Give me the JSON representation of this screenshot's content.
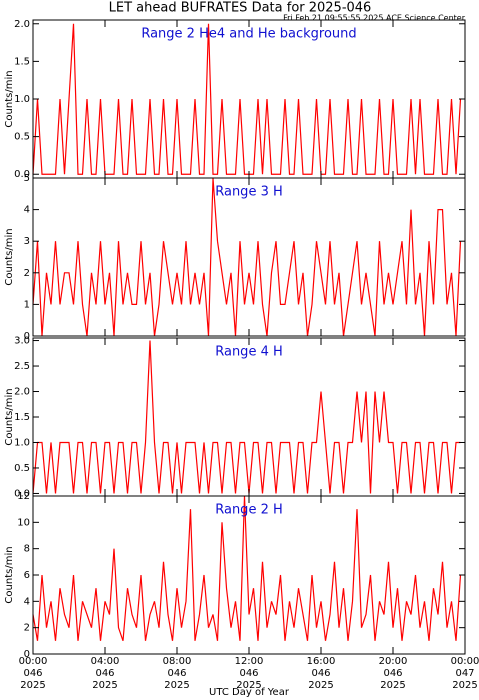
{
  "title": "LET ahead BUFRATES Data for 2025-046",
  "subtitle": "Fri Feb 21 09:55:55 2025 ACE Science Center",
  "xlabel": "UTC Day of Year",
  "chart_data": [
    {
      "type": "line",
      "annotation": "Range 2 He4 and He background",
      "ylabel": "Counts/min",
      "color": "#ff0000",
      "xlim": [
        0,
        24
      ],
      "ylim": [
        -0.05,
        2.05
      ],
      "yticks": [
        {
          "value": 0,
          "label": "0.0"
        },
        {
          "value": 0.5,
          "label": "0.5"
        },
        {
          "value": 1,
          "label": "1.0"
        },
        {
          "value": 1.5,
          "label": "1.5"
        },
        {
          "value": 2,
          "label": "2.0"
        }
      ],
      "x": [
        0,
        0.25,
        0.5,
        0.75,
        1,
        1.25,
        1.5,
        1.75,
        2,
        2.25,
        2.5,
        2.75,
        3,
        3.25,
        3.5,
        3.75,
        4,
        4.25,
        4.5,
        4.75,
        5,
        5.25,
        5.5,
        5.75,
        6,
        6.25,
        6.5,
        6.75,
        7,
        7.25,
        7.5,
        7.75,
        8,
        8.25,
        8.5,
        8.75,
        9,
        9.25,
        9.5,
        9.75,
        10,
        10.25,
        10.5,
        10.75,
        11,
        11.25,
        11.5,
        11.75,
        12,
        12.25,
        12.5,
        12.75,
        13,
        13.25,
        13.5,
        13.75,
        14,
        14.25,
        14.5,
        14.75,
        15,
        15.25,
        15.5,
        15.75,
        16,
        16.25,
        16.5,
        16.75,
        17,
        17.25,
        17.5,
        17.75,
        18,
        18.25,
        18.5,
        18.75,
        19,
        19.25,
        19.5,
        19.75,
        20,
        20.25,
        20.5,
        20.75,
        21,
        21.25,
        21.5,
        21.75,
        22,
        22.25,
        22.5,
        22.75,
        23,
        23.25,
        23.5,
        23.75
      ],
      "values": [
        0,
        1,
        0,
        0,
        0,
        0,
        1,
        0,
        1,
        2,
        0,
        0,
        1,
        0,
        0,
        1,
        0,
        0,
        0,
        1,
        0,
        0,
        1,
        0,
        0,
        0,
        1,
        0,
        0,
        1,
        0,
        0,
        1,
        0,
        0,
        0,
        1,
        0,
        0,
        2,
        0,
        0,
        1,
        0,
        0,
        0,
        1,
        0,
        0,
        0,
        1,
        0,
        1,
        0,
        0,
        0,
        1,
        0,
        0,
        1,
        0,
        0,
        0,
        1,
        0,
        0,
        1,
        0,
        0,
        0,
        1,
        0,
        0,
        1,
        0,
        0,
        0,
        1,
        0,
        0,
        1,
        0,
        0,
        0,
        1,
        0,
        1,
        0,
        0,
        0,
        1,
        0,
        0,
        1,
        0,
        1
      ]
    },
    {
      "type": "line",
      "annotation": "Range 3 H",
      "ylabel": "Counts/min",
      "color": "#ff0000",
      "xlim": [
        0,
        24
      ],
      "ylim": [
        0,
        5
      ],
      "yticks": [
        0,
        1,
        2,
        3,
        4,
        5
      ],
      "x": [
        0,
        0.25,
        0.5,
        0.75,
        1,
        1.25,
        1.5,
        1.75,
        2,
        2.25,
        2.5,
        2.75,
        3,
        3.25,
        3.5,
        3.75,
        4,
        4.25,
        4.5,
        4.75,
        5,
        5.25,
        5.5,
        5.75,
        6,
        6.25,
        6.5,
        6.75,
        7,
        7.25,
        7.5,
        7.75,
        8,
        8.25,
        8.5,
        8.75,
        9,
        9.25,
        9.5,
        9.75,
        10,
        10.25,
        10.5,
        10.75,
        11,
        11.25,
        11.5,
        11.75,
        12,
        12.25,
        12.5,
        12.75,
        13,
        13.25,
        13.5,
        13.75,
        14,
        14.25,
        14.5,
        14.75,
        15,
        15.25,
        15.5,
        15.75,
        16,
        16.25,
        16.5,
        16.75,
        17,
        17.25,
        17.5,
        17.75,
        18,
        18.25,
        18.5,
        18.75,
        19,
        19.25,
        19.5,
        19.75,
        20,
        20.25,
        20.5,
        20.75,
        21,
        21.25,
        21.5,
        21.75,
        22,
        22.25,
        22.5,
        22.75,
        23,
        23.25,
        23.5,
        23.75
      ],
      "values": [
        1,
        3,
        0,
        2,
        1,
        3,
        1,
        2,
        2,
        1,
        3,
        1,
        0,
        2,
        1,
        3,
        1,
        2,
        0,
        3,
        1,
        2,
        1,
        1,
        3,
        1,
        2,
        0,
        1,
        3,
        2,
        1,
        2,
        1,
        3,
        1,
        2,
        1,
        2,
        0,
        5,
        3,
        2,
        1,
        2,
        0,
        3,
        1,
        2,
        1,
        3,
        1,
        0,
        2,
        3,
        1,
        1,
        2,
        3,
        1,
        2,
        0,
        1,
        3,
        2,
        1,
        3,
        1,
        2,
        0,
        1,
        2,
        3,
        1,
        2,
        1,
        0,
        3,
        1,
        2,
        1,
        2,
        3,
        1,
        4,
        1,
        2,
        0,
        3,
        1,
        4,
        4,
        1,
        2,
        0,
        3
      ]
    },
    {
      "type": "line",
      "annotation": "Range 4 H",
      "ylabel": "Counts/min",
      "color": "#ff0000",
      "xlim": [
        0,
        24
      ],
      "ylim": [
        -0.05,
        3.05
      ],
      "yticks": [
        {
          "value": 0,
          "label": "0.0"
        },
        {
          "value": 0.5,
          "label": "0.5"
        },
        {
          "value": 1,
          "label": "1.0"
        },
        {
          "value": 1.5,
          "label": "1.5"
        },
        {
          "value": 2,
          "label": "2.0"
        },
        {
          "value": 2.5,
          "label": "2.5"
        },
        {
          "value": 3,
          "label": "3.0"
        }
      ],
      "x": [
        0,
        0.25,
        0.5,
        0.75,
        1,
        1.25,
        1.5,
        1.75,
        2,
        2.25,
        2.5,
        2.75,
        3,
        3.25,
        3.5,
        3.75,
        4,
        4.25,
        4.5,
        4.75,
        5,
        5.25,
        5.5,
        5.75,
        6,
        6.25,
        6.5,
        6.75,
        7,
        7.25,
        7.5,
        7.75,
        8,
        8.25,
        8.5,
        8.75,
        9,
        9.25,
        9.5,
        9.75,
        10,
        10.25,
        10.5,
        10.75,
        11,
        11.25,
        11.5,
        11.75,
        12,
        12.25,
        12.5,
        12.75,
        13,
        13.25,
        13.5,
        13.75,
        14,
        14.25,
        14.5,
        14.75,
        15,
        15.25,
        15.5,
        15.75,
        16,
        16.25,
        16.5,
        16.75,
        17,
        17.25,
        17.5,
        17.75,
        18,
        18.25,
        18.5,
        18.75,
        19,
        19.25,
        19.5,
        19.75,
        20,
        20.25,
        20.5,
        20.75,
        21,
        21.25,
        21.5,
        21.75,
        22,
        22.25,
        22.5,
        22.75,
        23,
        23.25,
        23.5,
        23.75
      ],
      "values": [
        0,
        1,
        1,
        0,
        1,
        0,
        1,
        1,
        1,
        0,
        1,
        1,
        0,
        1,
        1,
        0,
        1,
        1,
        0,
        1,
        1,
        0,
        1,
        1,
        0,
        1,
        3,
        1,
        0,
        1,
        1,
        0,
        1,
        0,
        1,
        1,
        1,
        0,
        1,
        0,
        1,
        1,
        0,
        1,
        1,
        0,
        1,
        1,
        0,
        1,
        1,
        0,
        1,
        1,
        0,
        1,
        1,
        1,
        0,
        1,
        1,
        0,
        1,
        1,
        2,
        1,
        0,
        1,
        1,
        0,
        1,
        1,
        2,
        1,
        2,
        0,
        2,
        1,
        2,
        1,
        1,
        0,
        1,
        1,
        0,
        1,
        1,
        0,
        1,
        1,
        0,
        1,
        1,
        0,
        1,
        1
      ]
    },
    {
      "type": "line",
      "annotation": "Range 2 H",
      "ylabel": "Counts/min",
      "color": "#ff0000",
      "xlim": [
        0,
        24
      ],
      "ylim": [
        0,
        12
      ],
      "yticks": [
        0,
        2,
        4,
        6,
        8,
        10,
        12
      ],
      "xticks": [
        {
          "value": 0,
          "label": [
            "00:00",
            "046",
            "2025"
          ]
        },
        {
          "value": 4,
          "label": [
            "04:00",
            "046",
            "2025"
          ]
        },
        {
          "value": 8,
          "label": [
            "08:00",
            "046",
            "2025"
          ]
        },
        {
          "value": 12,
          "label": [
            "12:00",
            "046",
            "2025"
          ]
        },
        {
          "value": 16,
          "label": [
            "16:00",
            "046",
            "2025"
          ]
        },
        {
          "value": 20,
          "label": [
            "20:00",
            "046",
            "2025"
          ]
        },
        {
          "value": 24,
          "label": [
            "00:00",
            "047",
            "2025"
          ]
        }
      ],
      "x": [
        0,
        0.25,
        0.5,
        0.75,
        1,
        1.25,
        1.5,
        1.75,
        2,
        2.25,
        2.5,
        2.75,
        3,
        3.25,
        3.5,
        3.75,
        4,
        4.25,
        4.5,
        4.75,
        5,
        5.25,
        5.5,
        5.75,
        6,
        6.25,
        6.5,
        6.75,
        7,
        7.25,
        7.5,
        7.75,
        8,
        8.25,
        8.5,
        8.75,
        9,
        9.25,
        9.5,
        9.75,
        10,
        10.25,
        10.5,
        10.75,
        11,
        11.25,
        11.5,
        11.75,
        12,
        12.25,
        12.5,
        12.75,
        13,
        13.25,
        13.5,
        13.75,
        14,
        14.25,
        14.5,
        14.75,
        15,
        15.25,
        15.5,
        15.75,
        16,
        16.25,
        16.5,
        16.75,
        17,
        17.25,
        17.5,
        17.75,
        18,
        18.25,
        18.5,
        18.75,
        19,
        19.25,
        19.5,
        19.75,
        20,
        20.25,
        20.5,
        20.75,
        21,
        21.25,
        21.5,
        21.75,
        22,
        22.25,
        22.5,
        22.75,
        23,
        23.25,
        23.5,
        23.75
      ],
      "values": [
        3,
        1,
        6,
        2,
        4,
        1,
        5,
        3,
        2,
        6,
        1,
        4,
        3,
        2,
        5,
        1,
        4,
        3,
        8,
        2,
        1,
        5,
        3,
        2,
        6,
        1,
        3,
        4,
        2,
        7,
        3,
        1,
        5,
        2,
        4,
        11,
        1,
        3,
        6,
        2,
        3,
        1,
        10,
        5,
        2,
        4,
        1,
        12,
        3,
        5,
        1,
        7,
        2,
        4,
        3,
        6,
        1,
        4,
        2,
        5,
        3,
        1,
        6,
        2,
        4,
        1,
        3,
        7,
        2,
        5,
        1,
        4,
        11,
        2,
        3,
        6,
        1,
        4,
        3,
        7,
        2,
        5,
        1,
        4,
        3,
        6,
        2,
        4,
        1,
        5,
        3,
        7,
        2,
        4,
        1,
        6
      ]
    }
  ]
}
